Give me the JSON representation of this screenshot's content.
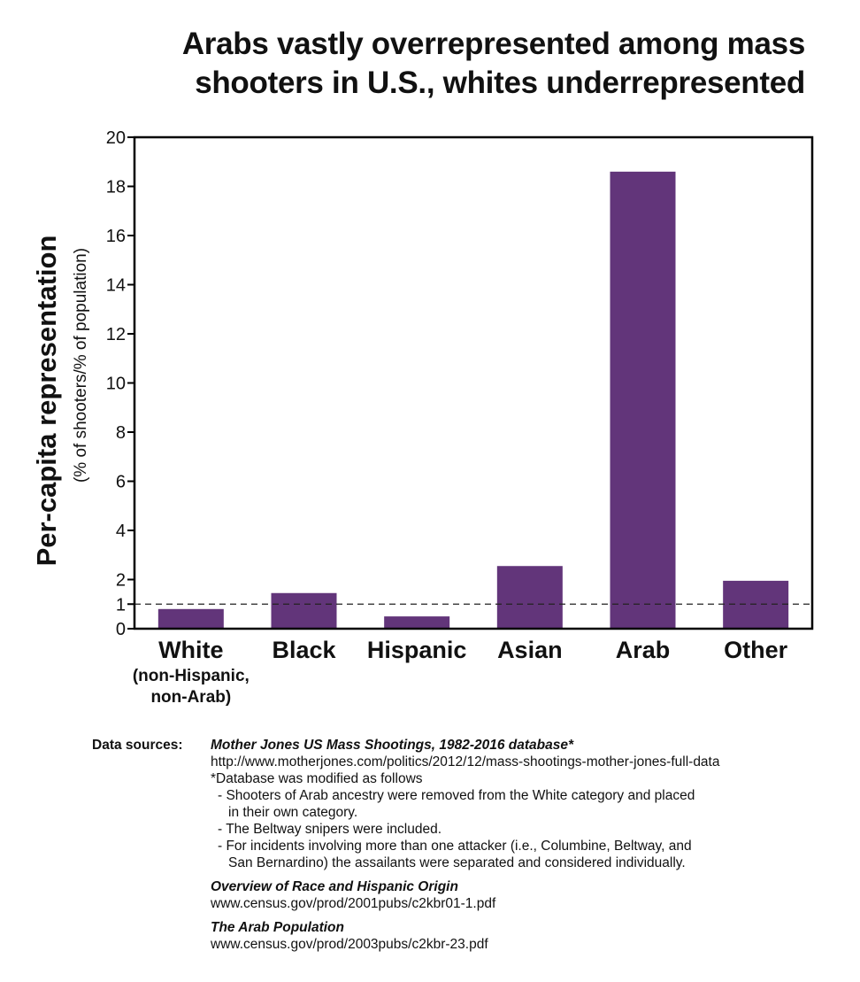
{
  "title": {
    "line1": "Arabs vastly overrepresented among mass",
    "line2": "shooters in U.S., whites underrepresented"
  },
  "chart_data": {
    "type": "bar",
    "title": "Arabs vastly overrepresented among mass shooters in U.S., whites underrepresented",
    "ylabel": "Per-capita representation",
    "ylabel_sub": "(% of shooters/% of population)",
    "xlabel": "",
    "ylim": [
      0,
      20
    ],
    "yticks": [
      "0",
      "1",
      "2",
      "4",
      "6",
      "8",
      "10",
      "12",
      "14",
      "16",
      "18",
      "20"
    ],
    "categories": [
      {
        "label": "White",
        "sub1": "(non-Hispanic,",
        "sub2": "non-Arab)"
      },
      {
        "label": "Black"
      },
      {
        "label": "Hispanic"
      },
      {
        "label": "Asian"
      },
      {
        "label": "Arab"
      },
      {
        "label": "Other"
      }
    ],
    "values": [
      0.8,
      1.45,
      0.5,
      2.55,
      18.6,
      1.95
    ],
    "reference_line": 1,
    "bar_color": "#62357a",
    "grid": false
  },
  "sources": {
    "label": "Data sources:",
    "s1_title": "Mother Jones US Mass Shootings, 1982-2016 database*",
    "s1_url": "http://www.motherjones.com/politics/2012/12/mass-shootings-mother-jones-full-data",
    "s1_note": "*Database was modified as follows",
    "s1_b1a": "- Shooters of Arab ancestry were removed from the White category and placed",
    "s1_b1b": "in their own category.",
    "s1_b2": "- The Beltway snipers were included.",
    "s1_b3a": "- For incidents involving more than one attacker (i.e., Columbine, Beltway, and",
    "s1_b3b": "San Bernardino) the assailants were separated and considered individually.",
    "s2_title": "Overview of Race and Hispanic Origin",
    "s2_url": "www.census.gov/prod/2001pubs/c2kbr01-1.pdf",
    "s3_title": "The Arab Population",
    "s3_url": "www.census.gov/prod/2003pubs/c2kbr-23.pdf"
  }
}
